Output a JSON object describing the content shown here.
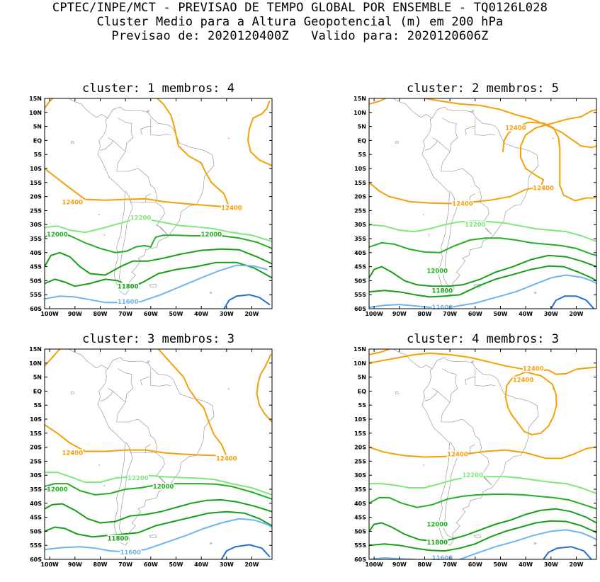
{
  "header": {
    "line1": "CPTEC/INPE/MCT - PREVISAO DE TEMPO GLOBAL POR ENSEMBLE - TQ0126L028",
    "line2": "Cluster Medio para a Altura Geopotencial (m) em 200 hPa",
    "line3": "Previsao de: 2020120400Z   Valido para: 2020120606Z"
  },
  "axes": {
    "lat_ticks": [
      "15N",
      "10N",
      "5N",
      "EQ",
      "5S",
      "10S",
      "15S",
      "20S",
      "25S",
      "30S",
      "35S",
      "40S",
      "45S",
      "50S",
      "55S",
      "60S"
    ],
    "lon_ticks": [
      "100W",
      "90W",
      "80W",
      "70W",
      "60W",
      "50W",
      "40W",
      "30W",
      "20W"
    ]
  },
  "colors": {
    "c12400": "#f5a00a",
    "c12200": "#7ee87e",
    "c12000": "#22b022",
    "c11800": "#16a016",
    "c11600": "#6fb4ee",
    "c11400": "#1f6fd6"
  },
  "panels": [
    {
      "title": "cluster: 1  membros: 4",
      "labels": [
        {
          "text": "12400",
          "lon": -91,
          "lat": -22,
          "color": "c12400"
        },
        {
          "text": "12400",
          "lon": -28,
          "lat": -24,
          "color": "c12400"
        },
        {
          "text": "12200",
          "lon": -64,
          "lat": -27.5,
          "color": "c12200"
        },
        {
          "text": "12000",
          "lon": -97,
          "lat": -33.5,
          "color": "c12000"
        },
        {
          "text": "12000",
          "lon": -36,
          "lat": -33.5,
          "color": "c12000"
        },
        {
          "text": "11800",
          "lon": -69,
          "lat": -52,
          "color": "c11800"
        },
        {
          "text": "11600",
          "lon": -69,
          "lat": -57.5,
          "color": "c11600"
        }
      ]
    },
    {
      "title": "cluster: 2  membros: 5",
      "labels": [
        {
          "text": "12400",
          "lon": -44,
          "lat": 4.5,
          "color": "c12400"
        },
        {
          "text": "12400",
          "lon": -33,
          "lat": -17,
          "color": "c12400"
        },
        {
          "text": "12400",
          "lon": -65,
          "lat": -22.5,
          "color": "c12400"
        },
        {
          "text": "12200",
          "lon": -60,
          "lat": -30,
          "color": "c12200"
        },
        {
          "text": "12000",
          "lon": -75,
          "lat": -46.5,
          "color": "c12000"
        },
        {
          "text": "11800",
          "lon": -73,
          "lat": -53.5,
          "color": "c11800"
        },
        {
          "text": "11600",
          "lon": -73,
          "lat": -59.5,
          "color": "c11600"
        }
      ]
    },
    {
      "title": "cluster: 3  membros: 3",
      "labels": [
        {
          "text": "12400",
          "lon": -91,
          "lat": -22,
          "color": "c12400"
        },
        {
          "text": "12400",
          "lon": -30,
          "lat": -24,
          "color": "c12400"
        },
        {
          "text": "12200",
          "lon": -65,
          "lat": -31,
          "color": "c12200"
        },
        {
          "text": "12000",
          "lon": -97,
          "lat": -35,
          "color": "c12000"
        },
        {
          "text": "12000",
          "lon": -55,
          "lat": -34,
          "color": "c12000"
        },
        {
          "text": "11800",
          "lon": -73,
          "lat": -52.5,
          "color": "c11800"
        },
        {
          "text": "11600",
          "lon": -68,
          "lat": -57.5,
          "color": "c11600"
        }
      ]
    },
    {
      "title": "cluster: 4  membros: 3",
      "labels": [
        {
          "text": "12400",
          "lon": -37,
          "lat": 8,
          "color": "c12400"
        },
        {
          "text": "12400",
          "lon": -41,
          "lat": 4,
          "color": "c12400"
        },
        {
          "text": "12400",
          "lon": -67,
          "lat": -22.5,
          "color": "c12400"
        },
        {
          "text": "12200",
          "lon": -61,
          "lat": -30,
          "color": "c12200"
        },
        {
          "text": "12000",
          "lon": -75,
          "lat": -47.5,
          "color": "c12000"
        },
        {
          "text": "11800",
          "lon": -75,
          "lat": -54,
          "color": "c11800"
        },
        {
          "text": "11600",
          "lon": -73,
          "lat": -59.5,
          "color": "c11600"
        }
      ]
    }
  ]
}
